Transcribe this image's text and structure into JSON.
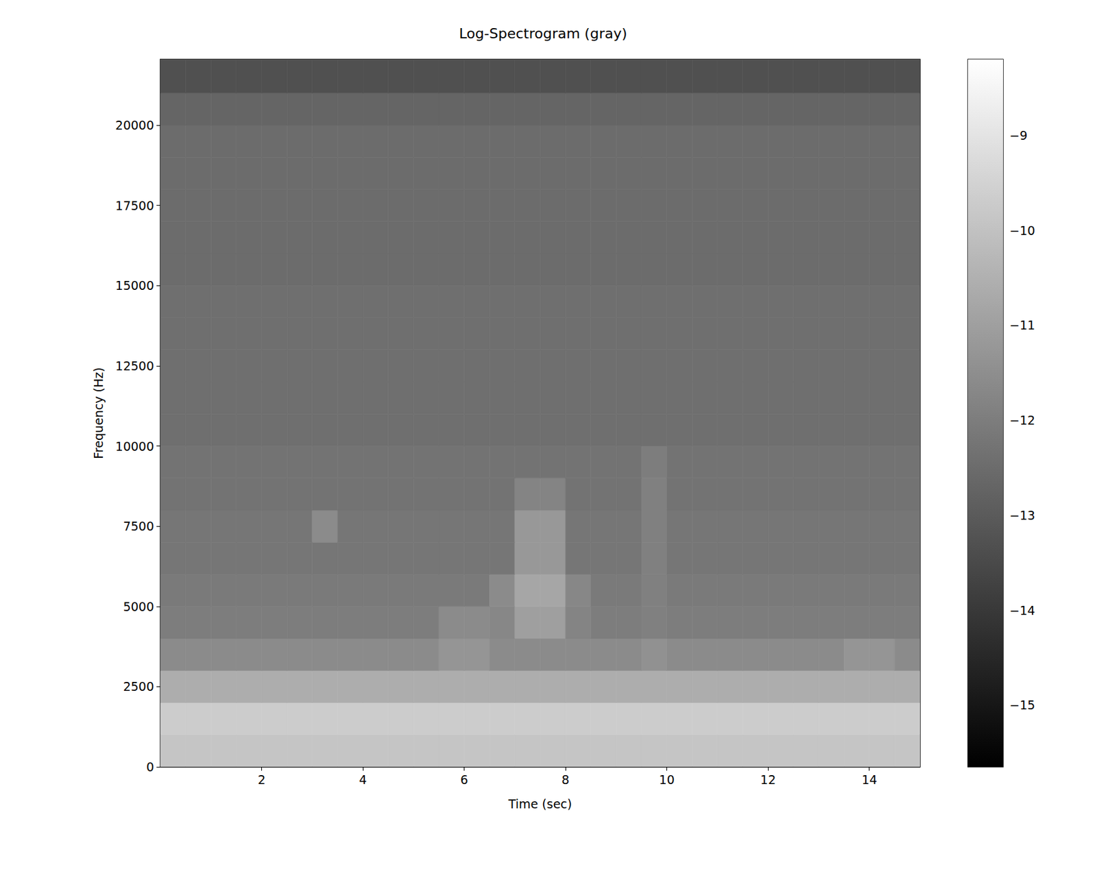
{
  "chart_data": {
    "type": "heatmap",
    "title": "Log-Spectrogram (gray)",
    "x_label": "Time (sec)",
    "y_label": "Frequency (Hz)",
    "xlim": [
      0,
      15
    ],
    "ylim": [
      0,
      22050
    ],
    "xticks": [
      2,
      4,
      6,
      8,
      10,
      12,
      14
    ],
    "yticks": [
      0,
      2500,
      5000,
      7500,
      10000,
      12500,
      15000,
      17500,
      20000
    ],
    "x_edges": [
      0,
      0.5,
      1,
      1.5,
      2,
      2.5,
      3,
      3.5,
      4,
      4.5,
      5,
      5.5,
      6,
      6.5,
      7,
      7.5,
      8,
      8.5,
      9,
      9.5,
      10,
      10.5,
      11,
      11.5,
      12,
      12.5,
      13,
      13.5,
      14,
      14.5,
      15
    ],
    "y_edges": [
      0,
      1000,
      2000,
      3000,
      4000,
      5000,
      6000,
      7000,
      8000,
      9000,
      10000,
      11000,
      12000,
      13000,
      14000,
      15000,
      16000,
      17000,
      18000,
      19000,
      20000,
      21000,
      22050
    ],
    "cells": [
      [
        -9.9,
        -9.9,
        -9.9,
        -9.9,
        -9.9,
        -9.9,
        -9.9,
        -9.9,
        -9.9,
        -9.9,
        -9.9,
        -9.9,
        -9.9,
        -9.9,
        -9.9,
        -9.9,
        -9.9,
        -9.9,
        -9.9,
        -9.9,
        -9.9,
        -9.9,
        -9.9,
        -9.9,
        -9.9,
        -9.9,
        -9.9,
        -9.9,
        -9.9,
        -9.9
      ],
      [
        -9.7,
        -9.7,
        -9.7,
        -9.7,
        -9.7,
        -9.7,
        -9.7,
        -9.7,
        -9.7,
        -9.7,
        -9.7,
        -9.7,
        -9.7,
        -9.7,
        -9.7,
        -9.7,
        -9.7,
        -9.7,
        -9.7,
        -9.7,
        -9.7,
        -9.7,
        -9.7,
        -9.7,
        -9.7,
        -9.7,
        -9.7,
        -9.7,
        -9.7,
        -9.7
      ],
      [
        -10.6,
        -10.6,
        -10.6,
        -10.6,
        -10.6,
        -10.6,
        -10.6,
        -10.6,
        -10.6,
        -10.6,
        -10.6,
        -10.6,
        -10.6,
        -10.6,
        -10.6,
        -10.6,
        -10.6,
        -10.6,
        -10.6,
        -10.6,
        -10.6,
        -10.6,
        -10.6,
        -10.6,
        -10.6,
        -10.6,
        -10.6,
        -10.6,
        -10.6,
        -10.6
      ],
      [
        -11.6,
        -11.6,
        -11.6,
        -11.6,
        -11.6,
        -11.6,
        -11.6,
        -11.6,
        -11.6,
        -11.6,
        -11.6,
        -11.3,
        -11.3,
        -11.6,
        -11.6,
        -11.6,
        -11.6,
        -11.6,
        -11.6,
        -11.4,
        -11.6,
        -11.6,
        -11.6,
        -11.6,
        -11.6,
        -11.6,
        -11.6,
        -11.3,
        -11.3,
        -11.6
      ],
      [
        -12.0,
        -12.0,
        -12.0,
        -12.0,
        -12.0,
        -12.0,
        -12.0,
        -12.0,
        -12.0,
        -12.0,
        -12.0,
        -11.6,
        -11.6,
        -11.7,
        -11.0,
        -11.0,
        -11.8,
        -12.0,
        -12.0,
        -11.9,
        -12.0,
        -12.0,
        -12.0,
        -12.0,
        -12.0,
        -12.0,
        -12.0,
        -12.0,
        -12.0,
        -12.0
      ],
      [
        -12.1,
        -12.1,
        -12.1,
        -12.1,
        -12.1,
        -12.1,
        -12.1,
        -12.1,
        -12.1,
        -12.1,
        -12.1,
        -12.1,
        -12.1,
        -11.6,
        -10.8,
        -10.8,
        -11.7,
        -12.1,
        -12.1,
        -11.9,
        -12.1,
        -12.1,
        -12.1,
        -12.1,
        -12.1,
        -12.1,
        -12.1,
        -12.1,
        -12.1,
        -12.1
      ],
      [
        -12.2,
        -12.2,
        -12.2,
        -12.2,
        -12.2,
        -12.2,
        -12.2,
        -12.2,
        -12.2,
        -12.2,
        -12.2,
        -12.2,
        -12.2,
        -12.2,
        -11.2,
        -11.2,
        -12.2,
        -12.2,
        -12.2,
        -11.9,
        -12.2,
        -12.2,
        -12.2,
        -12.2,
        -12.2,
        -12.2,
        -12.2,
        -12.2,
        -12.2,
        -12.2
      ],
      [
        -12.2,
        -12.2,
        -12.2,
        -12.2,
        -12.2,
        -12.2,
        -11.6,
        -12.2,
        -12.2,
        -12.2,
        -12.2,
        -12.2,
        -12.2,
        -12.2,
        -11.2,
        -11.2,
        -12.2,
        -12.2,
        -12.2,
        -11.9,
        -12.2,
        -12.2,
        -12.2,
        -12.2,
        -12.2,
        -12.2,
        -12.2,
        -12.2,
        -12.2,
        -12.2
      ],
      [
        -12.3,
        -12.3,
        -12.3,
        -12.3,
        -12.3,
        -12.3,
        -12.3,
        -12.3,
        -12.3,
        -12.3,
        -12.3,
        -12.3,
        -12.3,
        -12.3,
        -11.8,
        -11.8,
        -12.3,
        -12.3,
        -12.3,
        -11.9,
        -12.3,
        -12.3,
        -12.3,
        -12.3,
        -12.3,
        -12.3,
        -12.3,
        -12.3,
        -12.3,
        -12.3
      ],
      [
        -12.3,
        -12.3,
        -12.3,
        -12.3,
        -12.3,
        -12.3,
        -12.3,
        -12.3,
        -12.3,
        -12.3,
        -12.3,
        -12.3,
        -12.3,
        -12.3,
        -12.3,
        -12.3,
        -12.3,
        -12.3,
        -12.3,
        -12.0,
        -12.3,
        -12.3,
        -12.3,
        -12.3,
        -12.3,
        -12.3,
        -12.3,
        -12.3,
        -12.3,
        -12.3
      ],
      [
        -12.4,
        -12.4,
        -12.4,
        -12.4,
        -12.4,
        -12.4,
        -12.4,
        -12.4,
        -12.4,
        -12.4,
        -12.4,
        -12.4,
        -12.4,
        -12.4,
        -12.4,
        -12.4,
        -12.4,
        -12.4,
        -12.4,
        -12.4,
        -12.4,
        -12.4,
        -12.4,
        -12.4,
        -12.4,
        -12.4,
        -12.4,
        -12.4,
        -12.4,
        -12.4
      ],
      [
        -12.4,
        -12.4,
        -12.4,
        -12.4,
        -12.4,
        -12.4,
        -12.4,
        -12.4,
        -12.4,
        -12.4,
        -12.4,
        -12.4,
        -12.4,
        -12.4,
        -12.4,
        -12.4,
        -12.4,
        -12.4,
        -12.4,
        -12.4,
        -12.4,
        -12.4,
        -12.4,
        -12.4,
        -12.4,
        -12.4,
        -12.4,
        -12.4,
        -12.4,
        -12.4
      ],
      [
        -12.4,
        -12.4,
        -12.4,
        -12.4,
        -12.4,
        -12.4,
        -12.4,
        -12.4,
        -12.4,
        -12.4,
        -12.4,
        -12.4,
        -12.4,
        -12.4,
        -12.4,
        -12.4,
        -12.4,
        -12.4,
        -12.4,
        -12.4,
        -12.4,
        -12.4,
        -12.4,
        -12.4,
        -12.4,
        -12.4,
        -12.4,
        -12.4,
        -12.4,
        -12.4
      ],
      [
        -12.4,
        -12.4,
        -12.4,
        -12.4,
        -12.4,
        -12.4,
        -12.4,
        -12.4,
        -12.4,
        -12.4,
        -12.4,
        -12.4,
        -12.4,
        -12.4,
        -12.4,
        -12.4,
        -12.4,
        -12.4,
        -12.4,
        -12.4,
        -12.4,
        -12.4,
        -12.4,
        -12.4,
        -12.4,
        -12.4,
        -12.4,
        -12.4,
        -12.4,
        -12.4
      ],
      [
        -12.4,
        -12.4,
        -12.4,
        -12.4,
        -12.4,
        -12.4,
        -12.4,
        -12.4,
        -12.4,
        -12.4,
        -12.4,
        -12.4,
        -12.4,
        -12.4,
        -12.4,
        -12.4,
        -12.4,
        -12.4,
        -12.4,
        -12.4,
        -12.4,
        -12.4,
        -12.4,
        -12.4,
        -12.4,
        -12.4,
        -12.4,
        -12.4,
        -12.4,
        -12.4
      ],
      [
        -12.5,
        -12.5,
        -12.5,
        -12.5,
        -12.5,
        -12.5,
        -12.5,
        -12.5,
        -12.5,
        -12.5,
        -12.5,
        -12.5,
        -12.5,
        -12.5,
        -12.5,
        -12.5,
        -12.5,
        -12.5,
        -12.5,
        -12.5,
        -12.5,
        -12.5,
        -12.5,
        -12.5,
        -12.5,
        -12.5,
        -12.5,
        -12.5,
        -12.5,
        -12.5
      ],
      [
        -12.5,
        -12.5,
        -12.5,
        -12.5,
        -12.5,
        -12.5,
        -12.5,
        -12.5,
        -12.5,
        -12.5,
        -12.5,
        -12.5,
        -12.5,
        -12.5,
        -12.5,
        -12.5,
        -12.5,
        -12.5,
        -12.5,
        -12.5,
        -12.5,
        -12.5,
        -12.5,
        -12.5,
        -12.5,
        -12.5,
        -12.5,
        -12.5,
        -12.5,
        -12.5
      ],
      [
        -12.5,
        -12.5,
        -12.5,
        -12.5,
        -12.5,
        -12.5,
        -12.5,
        -12.5,
        -12.5,
        -12.5,
        -12.5,
        -12.5,
        -12.5,
        -12.5,
        -12.5,
        -12.5,
        -12.5,
        -12.5,
        -12.5,
        -12.5,
        -12.5,
        -12.5,
        -12.5,
        -12.5,
        -12.5,
        -12.5,
        -12.5,
        -12.5,
        -12.5,
        -12.5
      ],
      [
        -12.5,
        -12.5,
        -12.5,
        -12.5,
        -12.5,
        -12.5,
        -12.5,
        -12.5,
        -12.5,
        -12.5,
        -12.5,
        -12.5,
        -12.5,
        -12.5,
        -12.5,
        -12.5,
        -12.5,
        -12.5,
        -12.5,
        -12.5,
        -12.5,
        -12.5,
        -12.5,
        -12.5,
        -12.5,
        -12.5,
        -12.5,
        -12.5,
        -12.5,
        -12.5
      ],
      [
        -12.5,
        -12.5,
        -12.5,
        -12.5,
        -12.5,
        -12.5,
        -12.5,
        -12.5,
        -12.5,
        -12.5,
        -12.5,
        -12.5,
        -12.5,
        -12.5,
        -12.5,
        -12.5,
        -12.5,
        -12.5,
        -12.5,
        -12.5,
        -12.5,
        -12.5,
        -12.5,
        -12.5,
        -12.5,
        -12.5,
        -12.5,
        -12.5,
        -12.5,
        -12.5
      ],
      [
        -12.7,
        -12.7,
        -12.7,
        -12.7,
        -12.7,
        -12.7,
        -12.7,
        -12.7,
        -12.7,
        -12.7,
        -12.7,
        -12.7,
        -12.7,
        -12.7,
        -12.7,
        -12.7,
        -12.7,
        -12.7,
        -12.7,
        -12.7,
        -12.7,
        -12.7,
        -12.7,
        -12.7,
        -12.7,
        -12.7,
        -12.7,
        -12.7,
        -12.7,
        -12.7
      ],
      [
        -13.3,
        -13.3,
        -13.3,
        -13.3,
        -13.3,
        -13.3,
        -13.3,
        -13.3,
        -13.3,
        -13.3,
        -13.3,
        -13.3,
        -13.3,
        -13.3,
        -13.3,
        -13.3,
        -13.3,
        -13.3,
        -13.3,
        -13.3,
        -13.3,
        -13.3,
        -13.3,
        -13.3,
        -13.3,
        -13.3,
        -13.3,
        -13.3,
        -13.3,
        -13.3
      ]
    ],
    "colorbar_range": [
      -15.65,
      -8.2
    ],
    "colorbar_ticks": [
      {
        "value": -15,
        "label": "−15"
      },
      {
        "value": -14,
        "label": "−14"
      },
      {
        "value": -13,
        "label": "−13"
      },
      {
        "value": -12,
        "label": "−12"
      },
      {
        "value": -11,
        "label": "−11"
      },
      {
        "value": -10,
        "label": "−10"
      },
      {
        "value": -9,
        "label": "−9"
      }
    ]
  }
}
